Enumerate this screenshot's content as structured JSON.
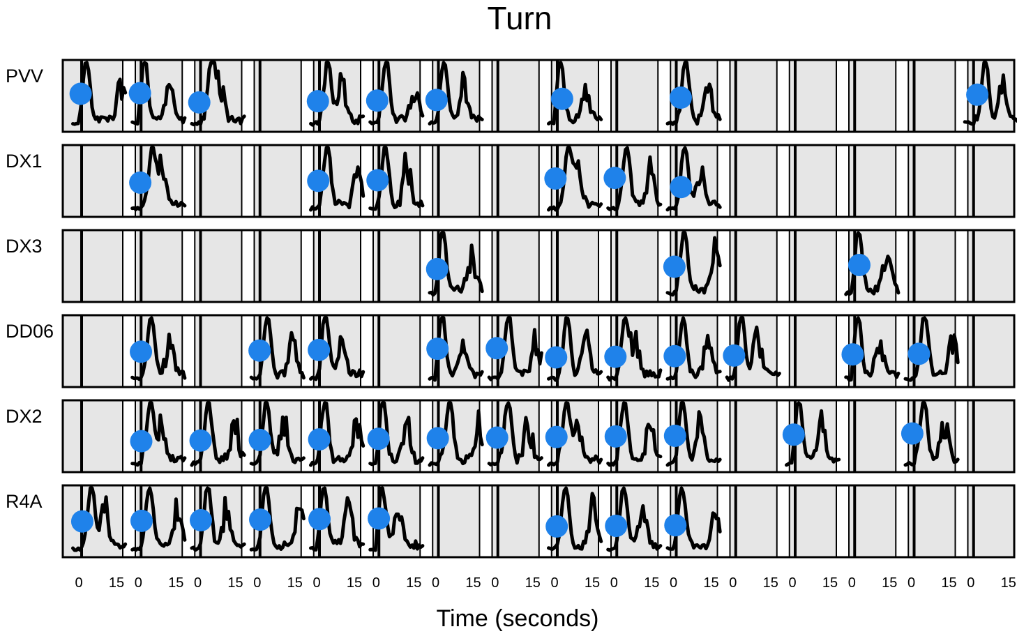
{
  "chart_data": {
    "type": "line",
    "title": "Turn",
    "xlabel": "Time (seconds)",
    "ylabel": "",
    "grid": false,
    "x_tick_labels": [
      "0",
      "15"
    ],
    "colors": {
      "trace": "#000000",
      "marker": "#1f82ea",
      "panel_background": "#e6e6e6",
      "panel_gap": "#ffffff"
    },
    "rows": [
      {
        "name": "PVV",
        "events": [
          {
            "block": 0
          },
          {
            "block": 1
          },
          {
            "block": 2
          },
          null,
          {
            "block": 4
          },
          {
            "block": 5
          },
          {
            "block": 6
          },
          null,
          {
            "block": 8
          },
          null,
          {
            "block": 10
          },
          null,
          null,
          null,
          null,
          {
            "block": 15
          }
        ]
      },
      {
        "name": "DX1",
        "events": [
          null,
          {
            "block": 1
          },
          null,
          null,
          {
            "block": 4
          },
          {
            "block": 5
          },
          null,
          null,
          {
            "block": 8
          },
          {
            "block": 9
          },
          {
            "block": 10
          },
          null,
          null,
          null,
          null,
          null
        ]
      },
      {
        "name": "DX3",
        "events": [
          null,
          null,
          null,
          null,
          null,
          null,
          {
            "block": 6
          },
          null,
          null,
          null,
          {
            "block": 10
          },
          null,
          null,
          {
            "block": 13
          },
          null,
          null
        ]
      },
      {
        "name": "DD06",
        "events": [
          null,
          {
            "block": 1
          },
          null,
          {
            "block": 3
          },
          {
            "block": 4
          },
          null,
          {
            "block": 6
          },
          {
            "block": 7
          },
          {
            "block": 8
          },
          {
            "block": 9
          },
          {
            "block": 10
          },
          {
            "block": 11
          },
          null,
          {
            "block": 13
          },
          {
            "block": 14
          },
          null
        ]
      },
      {
        "name": "DX2",
        "events": [
          null,
          {
            "block": 1
          },
          {
            "block": 2
          },
          {
            "block": 3
          },
          {
            "block": 4
          },
          {
            "block": 5
          },
          {
            "block": 6
          },
          {
            "block": 7
          },
          {
            "block": 8
          },
          {
            "block": 9
          },
          {
            "block": 10
          },
          null,
          {
            "block": 12
          },
          null,
          {
            "block": 14
          },
          null
        ]
      },
      {
        "name": "R4A",
        "events": [
          {
            "block": 0
          },
          {
            "block": 1
          },
          {
            "block": 2
          },
          {
            "block": 3
          },
          {
            "block": 4
          },
          {
            "block": 5
          },
          null,
          null,
          {
            "block": 8
          },
          {
            "block": 9
          },
          {
            "block": 10
          },
          null,
          null,
          null,
          null,
          null
        ]
      }
    ]
  }
}
